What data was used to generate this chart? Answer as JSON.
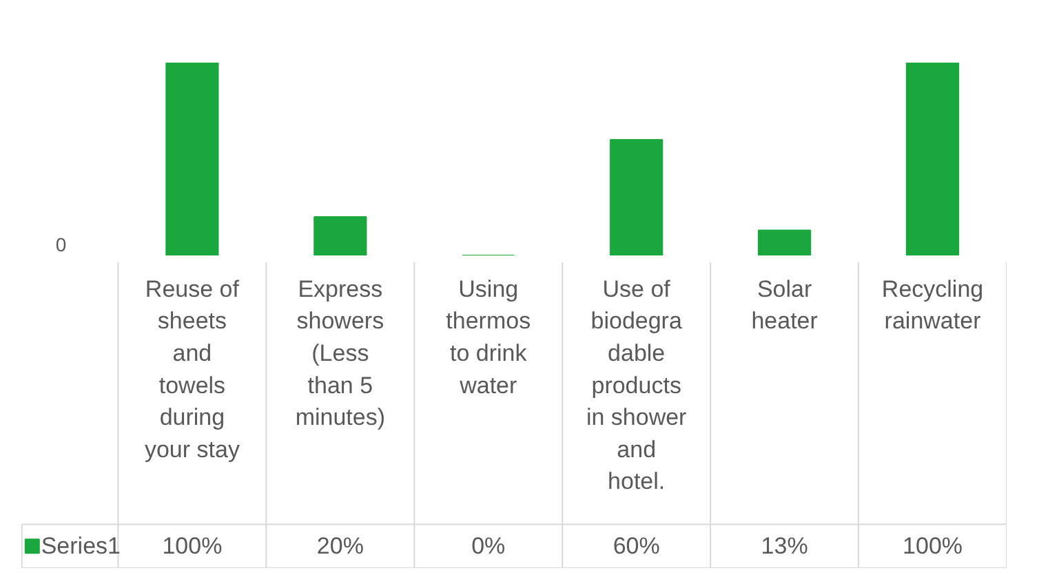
{
  "chart_data": {
    "type": "bar",
    "categories": [
      "Reuse of sheets and towels during your stay",
      "Express showers (Less than 5 minutes)",
      "Using thermos to drink water",
      "Use of biodegradable products in shower and hotel.",
      "Solar heater",
      "Recycling rainwater"
    ],
    "series": [
      {
        "name": "Series1",
        "color": "#1aa83e",
        "values": [
          100,
          20,
          0,
          60,
          13,
          100
        ],
        "value_labels": [
          "100%",
          "20%",
          "0%",
          "60%",
          "13%",
          "100%"
        ]
      }
    ],
    "ylim": [
      0,
      100
    ],
    "annotations": [
      "0"
    ],
    "legend": "bottom"
  }
}
